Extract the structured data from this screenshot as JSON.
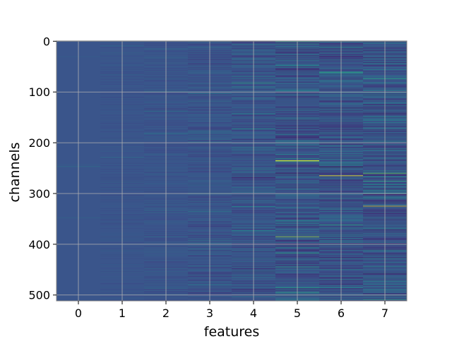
{
  "chart_data": {
    "type": "heatmap",
    "title": "",
    "xlabel": "features",
    "ylabel": "channels",
    "x_ticks": [
      "0",
      "1",
      "2",
      "3",
      "4",
      "5",
      "6",
      "7"
    ],
    "y_ticks": [
      "0",
      "100",
      "200",
      "300",
      "400",
      "500"
    ],
    "y_tick_values": [
      0,
      100,
      200,
      300,
      400,
      500
    ],
    "xlim": [
      -0.5,
      7.5
    ],
    "ylim": [
      511.5,
      -0.5
    ],
    "y_inverted": true,
    "grid": true,
    "colormap": "viridis",
    "n_features": 8,
    "n_channels": 512,
    "column_variability": [
      0.05,
      0.08,
      0.12,
      0.2,
      0.28,
      0.4,
      0.42,
      0.45
    ],
    "highlight_rows": [
      {
        "feature": 5,
        "channel": 235,
        "value": 0.9
      },
      {
        "feature": 5,
        "channel": 261,
        "value": 0.0
      },
      {
        "feature": 5,
        "channel": 385,
        "value": 0.85
      },
      {
        "feature": 6,
        "channel": 248,
        "value": 0.0
      },
      {
        "feature": 6,
        "channel": 265,
        "value": 1.0
      },
      {
        "feature": 7,
        "channel": 260,
        "value": 0.75
      },
      {
        "feature": 7,
        "channel": 302,
        "value": 0.05
      },
      {
        "feature": 7,
        "channel": 325,
        "value": 0.95
      },
      {
        "feature": 4,
        "channel": 82,
        "value": 0.55
      },
      {
        "feature": 4,
        "channel": 268,
        "value": 0.1
      }
    ]
  },
  "colors": {
    "base": "#3b528b",
    "grid": "#b0b0b0",
    "frame": "#808080"
  }
}
